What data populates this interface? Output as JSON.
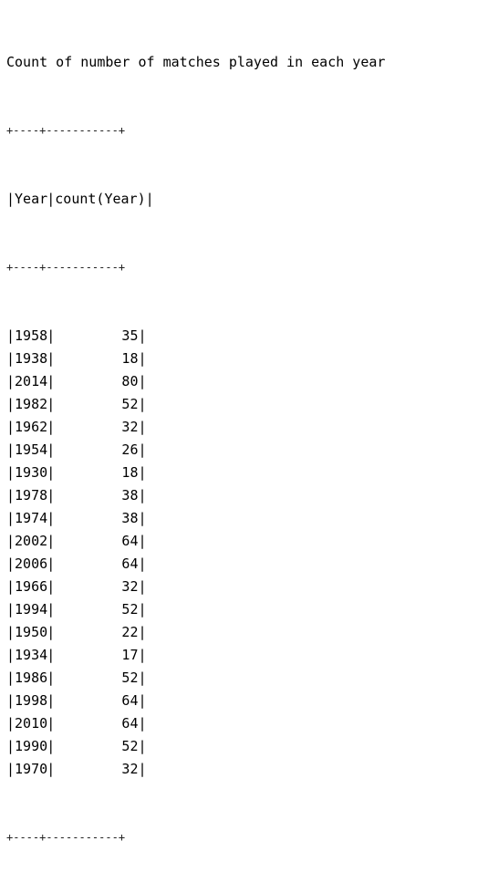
{
  "output": {
    "title": "Count of number of matches played in each year",
    "border": "+----+-----------+",
    "columns": [
      "Year",
      "count(Year)"
    ],
    "rows": [
      {
        "year": "1958",
        "count": "35"
      },
      {
        "year": "1938",
        "count": "18"
      },
      {
        "year": "2014",
        "count": "80"
      },
      {
        "year": "1982",
        "count": "52"
      },
      {
        "year": "1962",
        "count": "32"
      },
      {
        "year": "1954",
        "count": "26"
      },
      {
        "year": "1930",
        "count": "18"
      },
      {
        "year": "1978",
        "count": "38"
      },
      {
        "year": "1974",
        "count": "38"
      },
      {
        "year": "2002",
        "count": "64"
      },
      {
        "year": "2006",
        "count": "64"
      },
      {
        "year": "1966",
        "count": "32"
      },
      {
        "year": "1994",
        "count": "52"
      },
      {
        "year": "1950",
        "count": "22"
      },
      {
        "year": "1934",
        "count": "17"
      },
      {
        "year": "1986",
        "count": "52"
      },
      {
        "year": "1998",
        "count": "64"
      },
      {
        "year": "2010",
        "count": "64"
      },
      {
        "year": "1990",
        "count": "52"
      },
      {
        "year": "1970",
        "count": "32"
      }
    ]
  }
}
